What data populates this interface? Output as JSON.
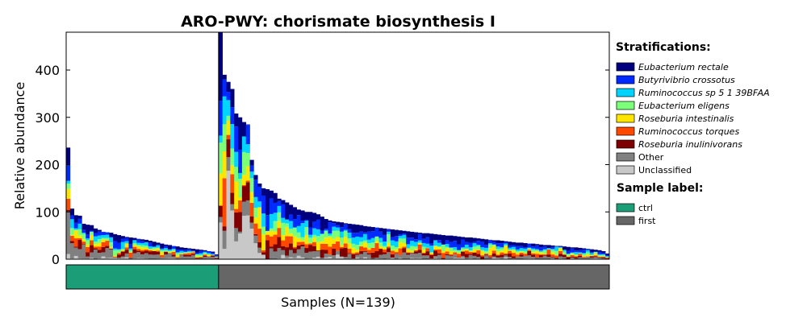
{
  "chart_data": {
    "type": "bar",
    "stacked": true,
    "title": "ARO-PWY: chorismate biosynthesis I",
    "ylabel": "Relative abundance",
    "xlabel": "Samples (N=139)",
    "ylim": [
      0,
      480
    ],
    "yticks": [
      0,
      100,
      200,
      300,
      400
    ],
    "grid": false,
    "legend_placement": "right",
    "stratifications_title": "Stratifications:",
    "sample_label_title": "Sample label:",
    "series": [
      {
        "name": "Eubacterium rectale",
        "color": "#00007f",
        "italic": true
      },
      {
        "name": "Butyrivibrio crossotus",
        "color": "#0029ff",
        "italic": true
      },
      {
        "name": "Ruminococcus sp 5 1 39BFAA",
        "color": "#00d4ff",
        "italic": true
      },
      {
        "name": "Eubacterium eligens",
        "color": "#7cff79",
        "italic": true
      },
      {
        "name": "Roseburia intestinalis",
        "color": "#ffe600",
        "italic": true
      },
      {
        "name": "Ruminococcus torques",
        "color": "#ff4800",
        "italic": true
      },
      {
        "name": "Roseburia inulinivorans",
        "color": "#7f0000",
        "italic": true
      },
      {
        "name": "Other",
        "color": "#808080",
        "italic": false
      },
      {
        "name": "Unclassified",
        "color": "#c8c8c8",
        "italic": false
      }
    ],
    "sample_labels": [
      {
        "name": "ctrl",
        "color": "#1b9e77",
        "count": 39
      },
      {
        "name": "first",
        "color": "#666666",
        "count": 100
      }
    ],
    "totals_ctrl": [
      236,
      107,
      93,
      92,
      75,
      73,
      72,
      65,
      62,
      58,
      57,
      56,
      53,
      51,
      49,
      47,
      46,
      45,
      43,
      42,
      41,
      39,
      37,
      35,
      33,
      31,
      30,
      28,
      27,
      25,
      24,
      23,
      22,
      21,
      20,
      19,
      17,
      16,
      10
    ],
    "totals_first": [
      480,
      390,
      375,
      360,
      308,
      300,
      290,
      285,
      210,
      178,
      160,
      150,
      148,
      145,
      140,
      128,
      125,
      120,
      115,
      110,
      105,
      103,
      100,
      100,
      98,
      95,
      90,
      85,
      82,
      80,
      79,
      78,
      76,
      75,
      74,
      73,
      72,
      70,
      69,
      68,
      67,
      66,
      65,
      64,
      63,
      62,
      61,
      60,
      59,
      58,
      57,
      56,
      55,
      55,
      54,
      53,
      52,
      51,
      50,
      50,
      49,
      48,
      47,
      46,
      46,
      45,
      44,
      43,
      42,
      41,
      40,
      40,
      39,
      38,
      37,
      36,
      35,
      35,
      34,
      33,
      33,
      32,
      31,
      30,
      30,
      29,
      28,
      28,
      27,
      26,
      25,
      25,
      24,
      23,
      22,
      21,
      20,
      19,
      17,
      12
    ]
  }
}
